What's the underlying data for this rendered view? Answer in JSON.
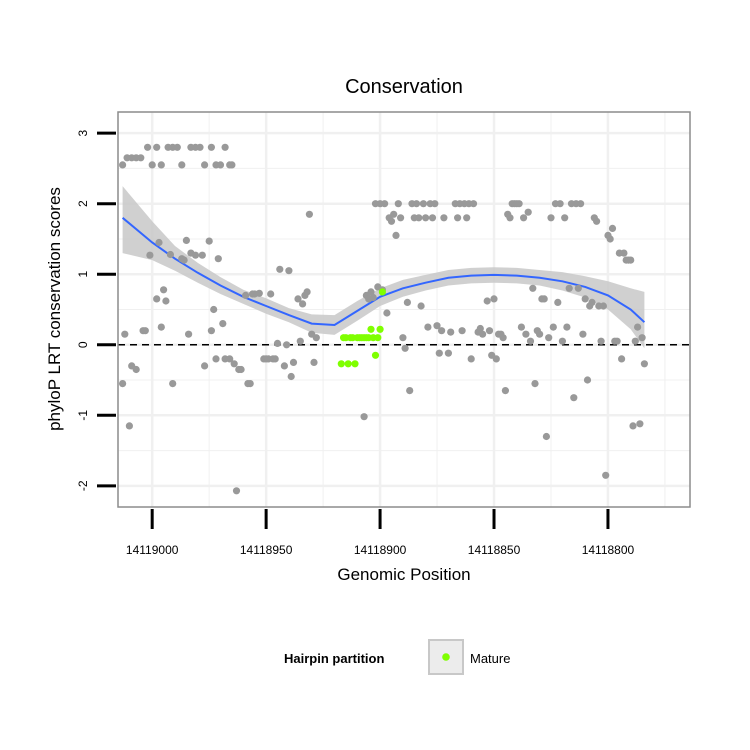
{
  "chart_data": {
    "type": "scatter",
    "title": "Conservation",
    "xlabel": "Genomic Position",
    "ylabel": "phyloP LRT conservation scores",
    "x_reversed": true,
    "xlim": [
      14119015,
      14118764
    ],
    "ylim": [
      -2.3,
      3.3
    ],
    "x_ticks": [
      14119000,
      14118950,
      14118900,
      14118850,
      14118800
    ],
    "x_tick_labels": [
      "14119000",
      "14118950",
      "14118900",
      "14118850",
      "14118800"
    ],
    "y_ticks": [
      -2,
      -1,
      0,
      1,
      2,
      3
    ],
    "y_tick_labels": [
      "-2",
      "-1",
      "0",
      "1",
      "2",
      "3"
    ],
    "reference_line": {
      "y": 0,
      "style": "dashed"
    },
    "grid": true,
    "legend": {
      "title": "Hairpin partition",
      "position": "bottom",
      "entries": [
        {
          "label": "Mature",
          "color": "#7fff00"
        }
      ]
    },
    "colors": {
      "other": "#999999",
      "mature": "#7fff00",
      "smooth": "#3366ff",
      "band": "#c8c8c8",
      "grid": "#f0f0f0",
      "border": "#8c8c8c"
    },
    "series": [
      {
        "name": "Other",
        "color": "#999999",
        "points": [
          [
            14119013,
            2.55
          ],
          [
            14119011,
            2.65
          ],
          [
            14119009,
            2.65
          ],
          [
            14119007,
            2.65
          ],
          [
            14119005,
            2.65
          ],
          [
            14119002,
            2.8
          ],
          [
            14119000,
            2.55
          ],
          [
            14118998,
            2.8
          ],
          [
            14118996,
            2.55
          ],
          [
            14118993,
            2.8
          ],
          [
            14118991,
            2.8
          ],
          [
            14118989,
            2.8
          ],
          [
            14118987,
            2.55
          ],
          [
            14118983,
            2.8
          ],
          [
            14118981,
            2.8
          ],
          [
            14118979,
            2.8
          ],
          [
            14118977,
            2.55
          ],
          [
            14118974,
            2.8
          ],
          [
            14118972,
            2.55
          ],
          [
            14118970,
            2.55
          ],
          [
            14118968,
            2.8
          ],
          [
            14118966,
            2.55
          ],
          [
            14118965,
            2.55
          ],
          [
            14119013,
            -0.55
          ],
          [
            14119012,
            0.15
          ],
          [
            14119010,
            -1.15
          ],
          [
            14119009,
            -0.3
          ],
          [
            14119007,
            -0.35
          ],
          [
            14119004,
            0.2
          ],
          [
            14119003,
            0.2
          ],
          [
            14119001,
            1.27
          ],
          [
            14118998,
            0.65
          ],
          [
            14118997,
            1.45
          ],
          [
            14118996,
            0.25
          ],
          [
            14118995,
            0.78
          ],
          [
            14118994,
            0.62
          ],
          [
            14118992,
            1.28
          ],
          [
            14118991,
            -0.55
          ],
          [
            14118987,
            1.22
          ],
          [
            14118986,
            1.2
          ],
          [
            14118985,
            1.48
          ],
          [
            14118984,
            0.15
          ],
          [
            14118983,
            1.3
          ],
          [
            14118981,
            1.27
          ],
          [
            14118978,
            1.27
          ],
          [
            14118977,
            -0.3
          ],
          [
            14118975,
            1.47
          ],
          [
            14118974,
            0.2
          ],
          [
            14118973,
            0.5
          ],
          [
            14118972,
            -0.2
          ],
          [
            14118971,
            1.22
          ],
          [
            14118969,
            0.3
          ],
          [
            14118968,
            -0.2
          ],
          [
            14118966,
            -0.2
          ],
          [
            14118964,
            -0.27
          ],
          [
            14118963,
            -2.07
          ],
          [
            14118962,
            -0.35
          ],
          [
            14118961,
            -0.35
          ],
          [
            14118959,
            0.7
          ],
          [
            14118958,
            -0.55
          ],
          [
            14118957,
            -0.55
          ],
          [
            14118956,
            0.72
          ],
          [
            14118955,
            0.72
          ],
          [
            14118953,
            0.73
          ],
          [
            14118951,
            -0.2
          ],
          [
            14118950,
            -0.2
          ],
          [
            14118949,
            -0.2
          ],
          [
            14118948,
            0.72
          ],
          [
            14118947,
            -0.2
          ],
          [
            14118946,
            -0.2
          ],
          [
            14118945,
            0.02
          ],
          [
            14118944,
            1.07
          ],
          [
            14118942,
            -0.3
          ],
          [
            14118941,
            0
          ],
          [
            14118940,
            1.05
          ],
          [
            14118939,
            -0.45
          ],
          [
            14118938,
            -0.25
          ],
          [
            14118936,
            0.65
          ],
          [
            14118935,
            0.05
          ],
          [
            14118934,
            0.58
          ],
          [
            14118933,
            0.7
          ],
          [
            14118932,
            0.75
          ],
          [
            14118931,
            1.85
          ],
          [
            14118930,
            0.15
          ],
          [
            14118929,
            -0.25
          ],
          [
            14118928,
            0.1
          ],
          [
            14118907,
            -1.02
          ],
          [
            14118906,
            0.7
          ],
          [
            14118905,
            0.65
          ],
          [
            14118904,
            0.75
          ],
          [
            14118903,
            0.67
          ],
          [
            14118902,
            2
          ],
          [
            14118901,
            0.82
          ],
          [
            14118900,
            2
          ],
          [
            14118899,
            0.78
          ],
          [
            14118898,
            2
          ],
          [
            14118897,
            0.45
          ],
          [
            14118896,
            1.8
          ],
          [
            14118895,
            1.75
          ],
          [
            14118894,
            1.85
          ],
          [
            14118893,
            1.55
          ],
          [
            14118892,
            2
          ],
          [
            14118891,
            1.8
          ],
          [
            14118890,
            0.1
          ],
          [
            14118889,
            -0.05
          ],
          [
            14118888,
            0.6
          ],
          [
            14118887,
            -0.65
          ],
          [
            14118886,
            2
          ],
          [
            14118885,
            1.8
          ],
          [
            14118884,
            2
          ],
          [
            14118883,
            1.8
          ],
          [
            14118882,
            0.55
          ],
          [
            14118881,
            2
          ],
          [
            14118880,
            1.8
          ],
          [
            14118879,
            0.25
          ],
          [
            14118878,
            2
          ],
          [
            14118877,
            1.8
          ],
          [
            14118876,
            2
          ],
          [
            14118875,
            0.27
          ],
          [
            14118874,
            -0.12
          ],
          [
            14118873,
            0.2
          ],
          [
            14118872,
            1.8
          ],
          [
            14118870,
            -0.12
          ],
          [
            14118869,
            0.18
          ],
          [
            14118867,
            2
          ],
          [
            14118866,
            1.8
          ],
          [
            14118865,
            2
          ],
          [
            14118864,
            0.2
          ],
          [
            14118863,
            2
          ],
          [
            14118862,
            1.8
          ],
          [
            14118861,
            2
          ],
          [
            14118860,
            -0.2
          ],
          [
            14118859,
            2
          ],
          [
            14118857,
            0.18
          ],
          [
            14118856,
            0.23
          ],
          [
            14118855,
            0.15
          ],
          [
            14118853,
            0.62
          ],
          [
            14118852,
            0.2
          ],
          [
            14118851,
            -0.15
          ],
          [
            14118850,
            0.65
          ],
          [
            14118849,
            -0.2
          ],
          [
            14118848,
            0.15
          ],
          [
            14118847,
            0.15
          ],
          [
            14118846,
            0.1
          ],
          [
            14118845,
            -0.65
          ],
          [
            14118844,
            1.85
          ],
          [
            14118843,
            1.8
          ],
          [
            14118842,
            2
          ],
          [
            14118841,
            2
          ],
          [
            14118840,
            2
          ],
          [
            14118839,
            2
          ],
          [
            14118838,
            0.25
          ],
          [
            14118837,
            1.8
          ],
          [
            14118836,
            0.15
          ],
          [
            14118835,
            1.88
          ],
          [
            14118834,
            0.05
          ],
          [
            14118833,
            0.8
          ],
          [
            14118832,
            -0.55
          ],
          [
            14118831,
            0.2
          ],
          [
            14118830,
            0.15
          ],
          [
            14118829,
            0.65
          ],
          [
            14118828,
            0.65
          ],
          [
            14118827,
            -1.3
          ],
          [
            14118826,
            0.1
          ],
          [
            14118825,
            1.8
          ],
          [
            14118824,
            0.25
          ],
          [
            14118823,
            2
          ],
          [
            14118822,
            0.6
          ],
          [
            14118821,
            2
          ],
          [
            14118820,
            0.05
          ],
          [
            14118819,
            1.8
          ],
          [
            14118818,
            0.25
          ],
          [
            14118817,
            0.8
          ],
          [
            14118816,
            2
          ],
          [
            14118815,
            -0.75
          ],
          [
            14118814,
            2
          ],
          [
            14118813,
            0.8
          ],
          [
            14118812,
            2
          ],
          [
            14118811,
            0.15
          ],
          [
            14118810,
            0.65
          ],
          [
            14118809,
            -0.5
          ],
          [
            14118808,
            0.55
          ],
          [
            14118807,
            0.6
          ],
          [
            14118806,
            1.8
          ],
          [
            14118805,
            1.75
          ],
          [
            14118804,
            0.55
          ],
          [
            14118803,
            0.05
          ],
          [
            14118802,
            0.55
          ],
          [
            14118801,
            -1.85
          ],
          [
            14118800,
            1.55
          ],
          [
            14118799,
            1.5
          ],
          [
            14118798,
            1.65
          ],
          [
            14118797,
            0.05
          ],
          [
            14118796,
            0.05
          ],
          [
            14118795,
            1.3
          ],
          [
            14118794,
            -0.2
          ],
          [
            14118793,
            1.3
          ],
          [
            14118792,
            1.2
          ],
          [
            14118791,
            1.2
          ],
          [
            14118790,
            1.2
          ],
          [
            14118789,
            -1.15
          ],
          [
            14118788,
            0.05
          ],
          [
            14118787,
            0.25
          ],
          [
            14118786,
            -1.12
          ],
          [
            14118785,
            0.1
          ],
          [
            14118784,
            -0.27
          ]
        ]
      },
      {
        "name": "Mature",
        "color": "#7fff00",
        "points": [
          [
            14118917,
            -0.27
          ],
          [
            14118916,
            0.1
          ],
          [
            14118915,
            0.1
          ],
          [
            14118914,
            -0.27
          ],
          [
            14118913,
            0.1
          ],
          [
            14118912,
            0.1
          ],
          [
            14118911,
            -0.27
          ],
          [
            14118910,
            0.1
          ],
          [
            14118909,
            0.1
          ],
          [
            14118908,
            0.1
          ],
          [
            14118907,
            0.1
          ],
          [
            14118906,
            0.1
          ],
          [
            14118905,
            0.1
          ],
          [
            14118904,
            0.22
          ],
          [
            14118903,
            0.1
          ],
          [
            14118902,
            -0.15
          ],
          [
            14118901,
            0.1
          ],
          [
            14118900,
            0.22
          ],
          [
            14118899,
            0.75
          ]
        ]
      }
    ],
    "smooth": {
      "name": "loess fit",
      "color": "#3366ff",
      "x": [
        14119013,
        14119000,
        14118990,
        14118980,
        14118970,
        14118960,
        14118950,
        14118940,
        14118930,
        14118920,
        14118910,
        14118900,
        14118890,
        14118880,
        14118870,
        14118860,
        14118850,
        14118840,
        14118830,
        14118820,
        14118810,
        14118800,
        14118790,
        14118784
      ],
      "y": [
        1.8,
        1.45,
        1.22,
        1.02,
        0.84,
        0.68,
        0.55,
        0.42,
        0.3,
        0.28,
        0.48,
        0.68,
        0.8,
        0.88,
        0.95,
        0.98,
        0.99,
        0.98,
        0.95,
        0.9,
        0.82,
        0.7,
        0.5,
        0.32
      ],
      "lo": [
        1.3,
        1.2,
        1.05,
        0.88,
        0.72,
        0.58,
        0.44,
        0.32,
        0.17,
        0.14,
        0.34,
        0.55,
        0.68,
        0.77,
        0.84,
        0.87,
        0.88,
        0.87,
        0.84,
        0.77,
        0.67,
        0.5,
        0.22,
        -0.05
      ],
      "hi": [
        2.25,
        1.75,
        1.4,
        1.16,
        0.96,
        0.78,
        0.66,
        0.52,
        0.43,
        0.42,
        0.62,
        0.8,
        0.92,
        0.99,
        1.06,
        1.09,
        1.1,
        1.09,
        1.06,
        1.03,
        0.97,
        0.9,
        0.8,
        0.75
      ]
    }
  }
}
